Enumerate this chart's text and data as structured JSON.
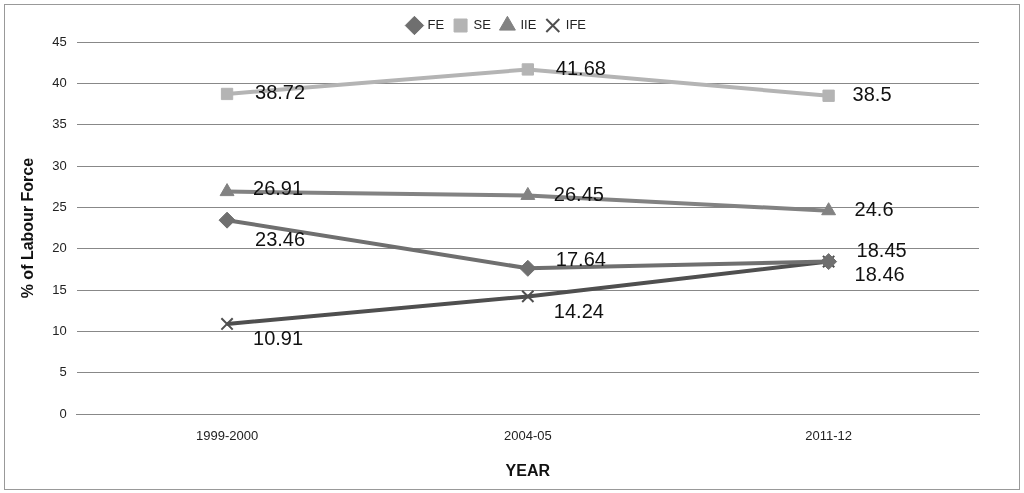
{
  "chart_data": {
    "type": "line",
    "xlabel": "YEAR",
    "ylabel": "% of Labour Force",
    "categories": [
      "1999-2000",
      "2004-05",
      "2011-12"
    ],
    "series": [
      {
        "name": "FE",
        "color": "#6f6f6f",
        "marker": "diamond",
        "values": [
          23.46,
          17.64,
          18.45
        ]
      },
      {
        "name": "SE",
        "color": "#b4b4b4",
        "marker": "square",
        "values": [
          38.72,
          41.68,
          38.5
        ]
      },
      {
        "name": "IIE",
        "color": "#828282",
        "marker": "triangle",
        "values": [
          26.91,
          26.45,
          24.6
        ]
      },
      {
        "name": "IFE",
        "color": "#4f4f4f",
        "marker": "cross",
        "values": [
          10.91,
          14.24,
          18.46
        ]
      }
    ],
    "ylim": [
      0,
      45
    ],
    "yticks": [
      0,
      5,
      10,
      15,
      20,
      25,
      30,
      35,
      40,
      45
    ],
    "grid": "y",
    "legend": "top",
    "data_labels": true
  }
}
